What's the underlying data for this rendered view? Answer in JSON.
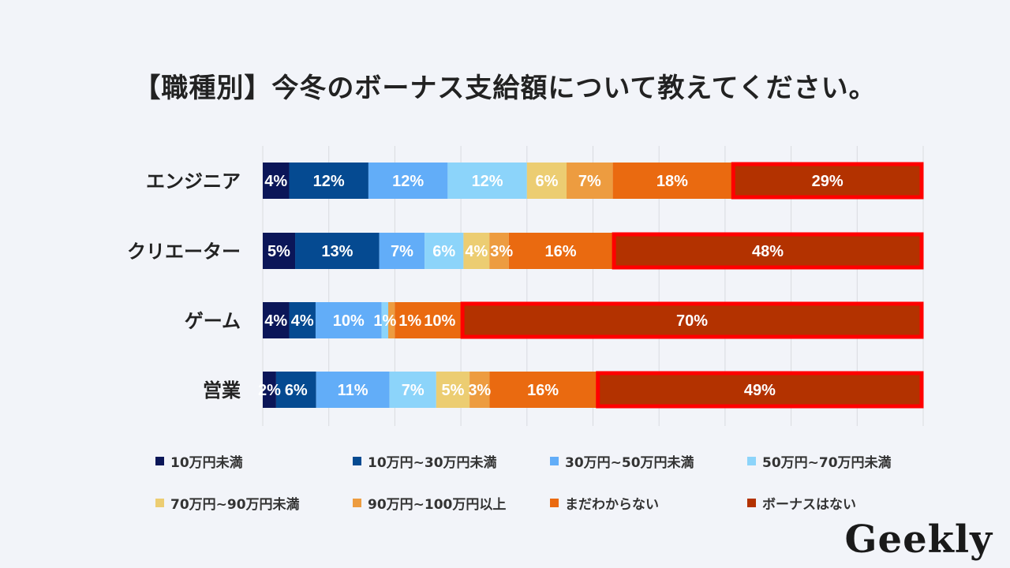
{
  "title": "【職種別】今冬のボーナス支給額について教えてください。",
  "logo": "Geekly",
  "chart_data": {
    "type": "bar",
    "orientation": "horizontal-stacked-100",
    "title": "【職種別】今冬のボーナス支給額について教えてください。",
    "categories": [
      "エンジニア",
      "クリエーター",
      "ゲーム",
      "営業"
    ],
    "xlim": [
      0,
      100
    ],
    "grid": true,
    "legend_position": "bottom",
    "highlight": {
      "series": "ボーナスはない",
      "outline_color": "#ff0000"
    },
    "series": [
      {
        "name": "10万円未満",
        "color": "#0b1658",
        "values": [
          4,
          5,
          4,
          2
        ]
      },
      {
        "name": "10万円~30万円未満",
        "color": "#054a91",
        "values": [
          12,
          13,
          4,
          6
        ]
      },
      {
        "name": "30万円~50万円未満",
        "color": "#62adf8",
        "values": [
          12,
          7,
          10,
          11
        ]
      },
      {
        "name": "50万円~70万円未満",
        "color": "#8cd4fa",
        "values": [
          12,
          6,
          1,
          7
        ]
      },
      {
        "name": "70万円~90万円未満",
        "color": "#eccd72",
        "values": [
          6,
          4,
          0,
          5
        ]
      },
      {
        "name": "90万円~100万円以上",
        "color": "#ed9c40",
        "values": [
          7,
          3,
          1,
          3
        ]
      },
      {
        "name": "まだわからない",
        "color": "#ea6a10",
        "values": [
          18,
          16,
          10,
          16
        ]
      },
      {
        "name": "ボーナスはない",
        "color": "#b33200",
        "values": [
          29,
          48,
          70,
          49
        ]
      }
    ]
  }
}
